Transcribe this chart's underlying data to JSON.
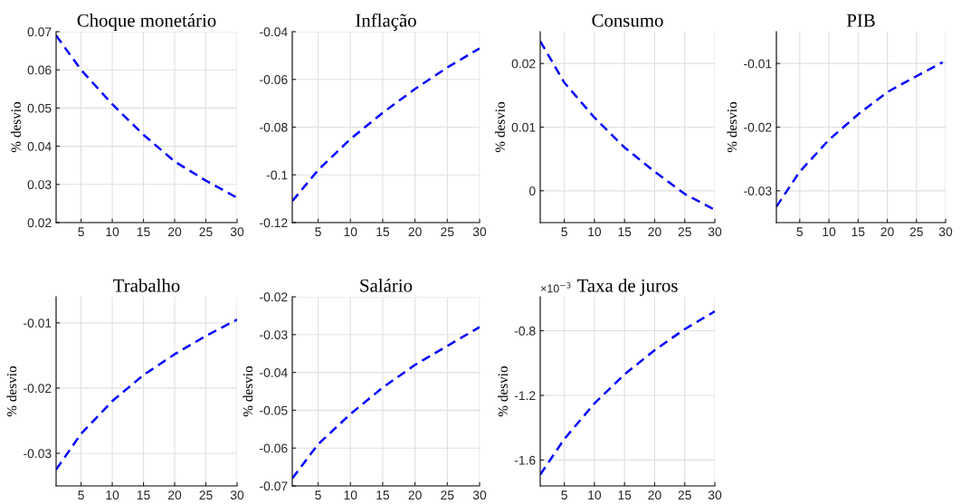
{
  "chart_data": [
    {
      "type": "line",
      "title": "Choque monetário",
      "ylabel": "% desvio",
      "x": [
        1,
        5,
        10,
        15,
        20,
        25,
        30
      ],
      "xlim": [
        1,
        30
      ],
      "xticks": [
        5,
        10,
        15,
        20,
        25,
        30
      ],
      "ylim": [
        0.02,
        0.07
      ],
      "yticks": [
        0.02,
        0.03,
        0.04,
        0.05,
        0.06,
        0.07
      ],
      "grid": true,
      "line_style": "dashed",
      "series": [
        {
          "color": "#0000ff",
          "values": [
            0.069,
            0.06,
            0.051,
            0.043,
            0.036,
            0.031,
            0.0265
          ]
        }
      ]
    },
    {
      "type": "line",
      "title": "Inflação",
      "x": [
        1,
        5,
        10,
        15,
        20,
        25,
        30
      ],
      "xlim": [
        1,
        30
      ],
      "xticks": [
        5,
        10,
        15,
        20,
        25,
        30
      ],
      "ylim": [
        -0.12,
        -0.04
      ],
      "yticks": [
        -0.12,
        -0.1,
        -0.08,
        -0.06,
        -0.04
      ],
      "grid": true,
      "line_style": "dashed",
      "series": [
        {
          "color": "#0000ff",
          "values": [
            -0.111,
            -0.098,
            -0.085,
            -0.074,
            -0.064,
            -0.055,
            -0.047
          ]
        }
      ]
    },
    {
      "type": "line",
      "title": "Consumo",
      "ylabel": "% desvio",
      "x": [
        1,
        5,
        10,
        15,
        20,
        25,
        30
      ],
      "xlim": [
        1,
        30
      ],
      "xticks": [
        5,
        10,
        15,
        20,
        25,
        30
      ],
      "ylim": [
        -0.005,
        0.025
      ],
      "yticks": [
        0,
        0.01,
        0.02
      ],
      "grid": true,
      "line_style": "dashed",
      "series": [
        {
          "color": "#0000ff",
          "values": [
            0.0235,
            0.017,
            0.0115,
            0.0068,
            0.003,
            -0.0005,
            -0.003
          ]
        }
      ]
    },
    {
      "type": "line",
      "title": "PIB",
      "ylabel": "% desvio",
      "x": [
        1,
        5,
        10,
        15,
        20,
        25,
        29.5
      ],
      "xlim": [
        1,
        30
      ],
      "xticks": [
        5,
        10,
        15,
        20,
        25,
        30
      ],
      "ylim": [
        -0.035,
        -0.005
      ],
      "yticks": [
        -0.03,
        -0.02,
        -0.01
      ],
      "grid": true,
      "line_style": "dashed",
      "series": [
        {
          "color": "#0000ff",
          "values": [
            -0.0325,
            -0.027,
            -0.022,
            -0.018,
            -0.0145,
            -0.012,
            -0.0098
          ]
        }
      ]
    },
    {
      "type": "line",
      "title": "Trabalho",
      "ylabel": "% desvio",
      "x": [
        1,
        5,
        10,
        15,
        20,
        25,
        30
      ],
      "xlim": [
        1,
        30
      ],
      "xticks": [
        5,
        10,
        15,
        20,
        25,
        30
      ],
      "ylim": [
        -0.035,
        -0.006
      ],
      "yticks": [
        -0.03,
        -0.02,
        -0.01
      ],
      "grid": true,
      "line_style": "dashed",
      "series": [
        {
          "color": "#0000ff",
          "values": [
            -0.0325,
            -0.027,
            -0.022,
            -0.018,
            -0.0148,
            -0.012,
            -0.0095
          ]
        }
      ]
    },
    {
      "type": "line",
      "title": "Salário",
      "ylabel": "% desvio",
      "x": [
        1,
        5,
        10,
        15,
        20,
        25,
        30
      ],
      "xlim": [
        1,
        30
      ],
      "xticks": [
        5,
        10,
        15,
        20,
        25,
        30
      ],
      "ylim": [
        -0.07,
        -0.02
      ],
      "yticks": [
        -0.07,
        -0.06,
        -0.05,
        -0.04,
        -0.03,
        -0.02
      ],
      "grid": true,
      "line_style": "dashed",
      "series": [
        {
          "color": "#0000ff",
          "values": [
            -0.068,
            -0.059,
            -0.051,
            -0.044,
            -0.038,
            -0.033,
            -0.028
          ]
        }
      ]
    },
    {
      "type": "line",
      "title": "Taxa de juros",
      "ylabel": "% desvio",
      "annotations": [
        "×10$^{−3}$"
      ],
      "x": [
        1,
        5,
        10,
        15,
        20,
        25,
        30
      ],
      "xlim": [
        1,
        30
      ],
      "xticks": [
        5,
        10,
        15,
        20,
        25,
        30
      ],
      "ylim": [
        -1.76,
        -0.59
      ],
      "yticks": [
        -1.6,
        -1.2,
        -0.8
      ],
      "grid": true,
      "line_style": "dashed",
      "series": [
        {
          "color": "#0000ff",
          "values": [
            -1.69,
            -1.47,
            -1.25,
            -1.07,
            -0.92,
            -0.79,
            -0.68
          ]
        }
      ]
    }
  ]
}
